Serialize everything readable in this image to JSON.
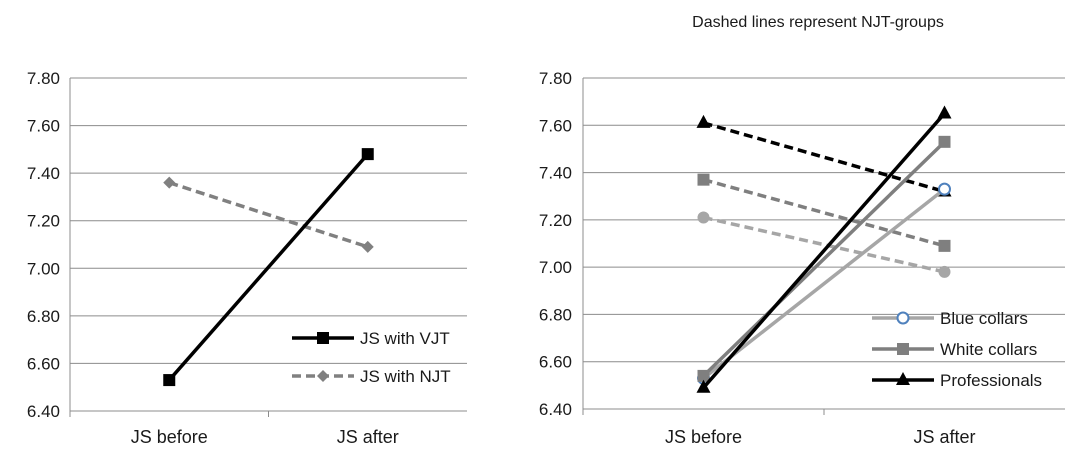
{
  "chart_data": [
    {
      "type": "line",
      "title": "",
      "categories": [
        "JS before",
        "JS after"
      ],
      "ylim": [
        6.4,
        7.8
      ],
      "yticks": [
        "6.40",
        "6.60",
        "6.80",
        "7.00",
        "7.20",
        "7.40",
        "7.60",
        "7.80"
      ],
      "grid": true,
      "legend_position": "bottom-right",
      "series": [
        {
          "name": "JS with VJT",
          "values": [
            6.53,
            7.48
          ],
          "color": "#000000",
          "dash": false,
          "marker": "square"
        },
        {
          "name": "JS with NJT",
          "values": [
            7.36,
            7.09
          ],
          "color": "#808080",
          "dash": true,
          "marker": "diamond"
        }
      ]
    },
    {
      "type": "line",
      "title": "",
      "annotation": "Dashed lines represent NJT-groups",
      "categories": [
        "JS before",
        "JS after"
      ],
      "ylim": [
        6.4,
        7.8
      ],
      "yticks": [
        "6.40",
        "6.60",
        "6.80",
        "7.00",
        "7.20",
        "7.40",
        "7.60",
        "7.80"
      ],
      "grid": true,
      "legend_position": "bottom-right",
      "series": [
        {
          "name": "Blue collars",
          "values": [
            6.53,
            7.33
          ],
          "color": "#a6a6a6",
          "dash": false,
          "marker": "circle-open",
          "legend": true
        },
        {
          "name": "White collars",
          "values": [
            6.54,
            7.53
          ],
          "color": "#7f7f7f",
          "dash": false,
          "marker": "square",
          "legend": true
        },
        {
          "name": "Professionals",
          "values": [
            6.49,
            7.65
          ],
          "color": "#000000",
          "dash": false,
          "marker": "triangle",
          "legend": true
        },
        {
          "values": [
            7.21,
            6.98
          ],
          "color": "#a6a6a6",
          "dash": true,
          "marker": "circle",
          "legend": false
        },
        {
          "values": [
            7.37,
            7.09
          ],
          "color": "#7f7f7f",
          "dash": true,
          "marker": "square",
          "legend": false
        },
        {
          "values": [
            7.61,
            7.32
          ],
          "color": "#000000",
          "dash": true,
          "marker": "triangle",
          "legend": false
        }
      ]
    }
  ]
}
